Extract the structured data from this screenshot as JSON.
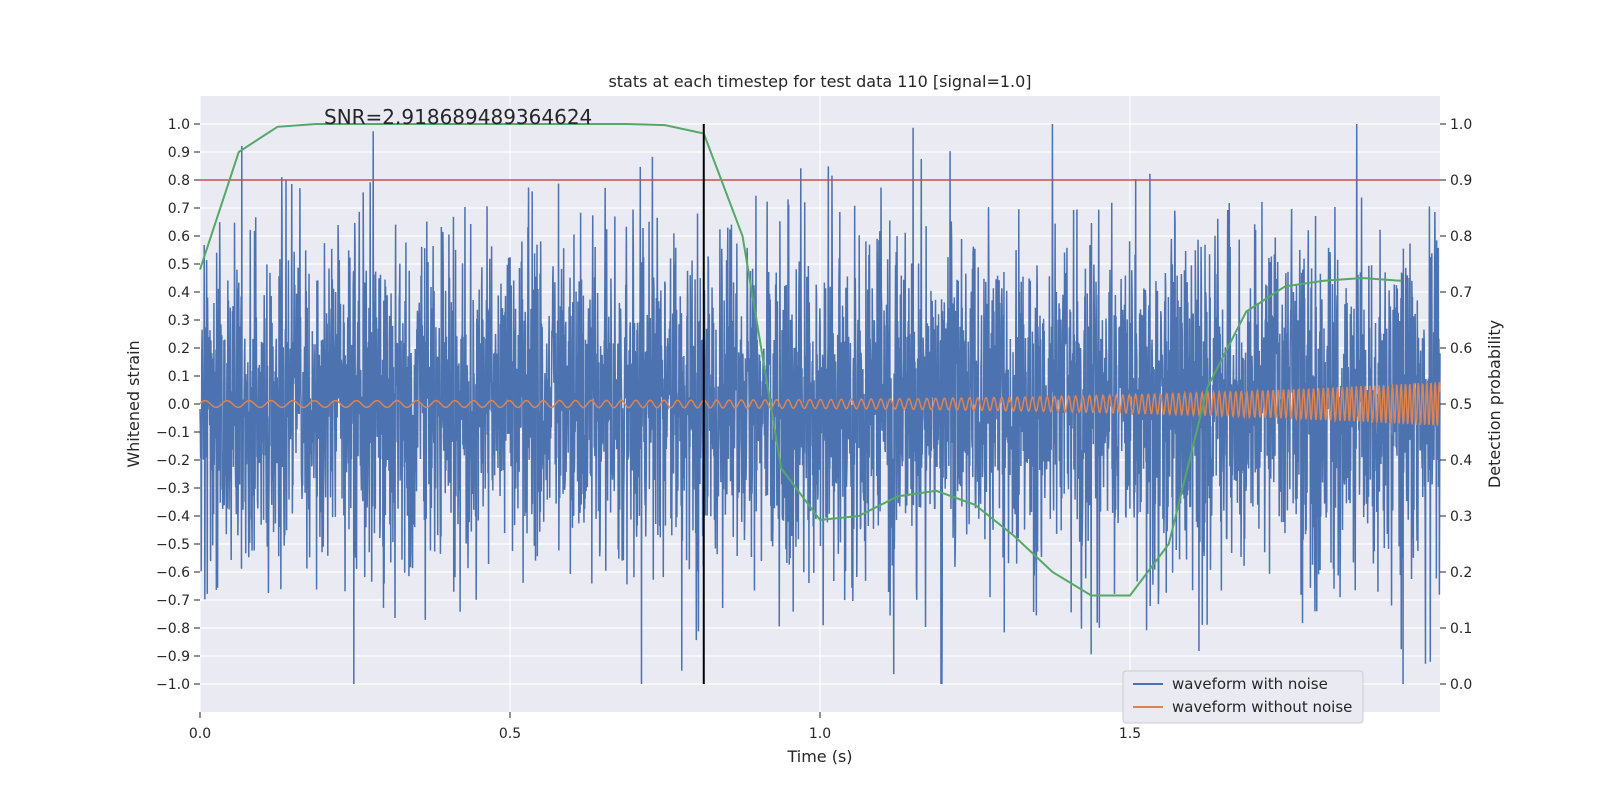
{
  "chart_data": {
    "type": "line",
    "title": "stats at each timestep for test data 110 [signal=1.0]",
    "xlabel": "Time (s)",
    "ylabel_left": "Whitened strain",
    "ylabel_right": "Detection probability",
    "xlim": [
      0.0,
      2.0
    ],
    "ylim_left": [
      -1.1,
      1.1
    ],
    "ylim_right": [
      -0.05,
      1.05
    ],
    "x_ticks": [
      0.0,
      0.5,
      1.0,
      1.5
    ],
    "x_tick_labels": [
      "0.0",
      "0.5",
      "1.0",
      "1.5"
    ],
    "y_left_ticks": [
      1.0,
      0.9,
      0.8,
      0.7,
      0.6,
      0.5,
      0.4,
      0.3,
      0.2,
      0.1,
      0.0,
      -0.1,
      -0.2,
      -0.3,
      -0.4,
      -0.5,
      -0.6,
      -0.7,
      -0.8,
      -0.9,
      -1.0
    ],
    "y_left_tick_labels": [
      "1.0",
      "0.9",
      "0.8",
      "0.7",
      "0.6",
      "0.5",
      "0.4",
      "0.3",
      "0.2",
      "0.1",
      "0.0",
      "−0.1",
      "−0.2",
      "−0.3",
      "−0.4",
      "−0.5",
      "−0.6",
      "−0.7",
      "−0.8",
      "−0.9",
      "−1.0"
    ],
    "y_right_ticks": [
      1.0,
      0.9,
      0.8,
      0.7,
      0.6,
      0.5,
      0.4,
      0.3,
      0.2,
      0.1,
      0.0
    ],
    "y_right_tick_labels": [
      "1.0",
      "0.9",
      "0.8",
      "0.7",
      "0.6",
      "0.5",
      "0.4",
      "0.3",
      "0.2",
      "0.1",
      "0.0"
    ],
    "annotation": "SNR=2.918689489364624",
    "annotation_x": 0.2,
    "annotation_y": 1.0,
    "threshold_line": {
      "axis": "right",
      "value": 0.9,
      "color": "#c44e52"
    },
    "marker_line": {
      "x": 0.8125,
      "y_from": -1.0,
      "y_to": 1.0,
      "color": "#000000"
    },
    "series": [
      {
        "name": "waveform with noise",
        "axis": "left",
        "color": "#4c72b0",
        "kind": "noisy_strain",
        "t_start": 0.0,
        "t_end": 2.0,
        "n_samples": 4096,
        "approx_std": 0.3,
        "y_min": -1.0,
        "y_max": 1.0
      },
      {
        "name": "waveform without noise",
        "axis": "left",
        "color": "#dd8452",
        "kind": "chirp",
        "t_start": 0.0,
        "t_end": 2.0,
        "amplitude_start": 0.012,
        "amplitude_end": 0.08,
        "frequency_start": 28,
        "frequency_end": 150
      },
      {
        "name": "detection probability",
        "axis": "right",
        "color": "#55a868",
        "x": [
          0.0,
          0.0625,
          0.125,
          0.1875,
          0.25,
          0.3125,
          0.375,
          0.4375,
          0.5,
          0.5625,
          0.625,
          0.6875,
          0.75,
          0.8125,
          0.875,
          0.9375,
          1.0,
          1.0625,
          1.125,
          1.1875,
          1.25,
          1.3125,
          1.375,
          1.4375,
          1.5,
          1.5625,
          1.625,
          1.6875,
          1.75,
          1.8125,
          1.875,
          1.9375
        ],
        "values": [
          0.74,
          0.95,
          0.995,
          1.0,
          1.0,
          1.0,
          1.0,
          1.0,
          1.0,
          1.0,
          1.0,
          1.0,
          0.998,
          0.983,
          0.8,
          0.385,
          0.293,
          0.3,
          0.335,
          0.345,
          0.32,
          0.265,
          0.2,
          0.158,
          0.158,
          0.25,
          0.53,
          0.665,
          0.71,
          0.72,
          0.725,
          0.72
        ]
      }
    ],
    "legend": {
      "position": "lower-right",
      "entries": [
        {
          "label": "waveform with noise",
          "color": "#4c72b0"
        },
        {
          "label": "waveform without noise",
          "color": "#dd8452"
        }
      ]
    },
    "grid": true,
    "background": "#eaeaf2"
  }
}
